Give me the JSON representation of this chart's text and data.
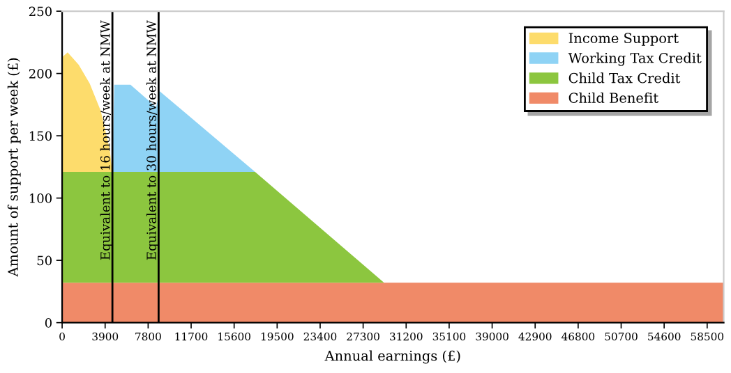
{
  "chart_data": {
    "type": "area",
    "stacked": true,
    "xlabel": "Annual earnings (£)",
    "ylabel": "Amount of support per week (£)",
    "x": [
      0,
      500,
      1500,
      2500,
      3500,
      4300,
      4550,
      4730,
      6200,
      8530,
      8820,
      17500,
      29200,
      60000
    ],
    "series": [
      {
        "name": "Child Benefit",
        "color": "#f08a68",
        "values": [
          32,
          32,
          32,
          32,
          32,
          32,
          32,
          32,
          32,
          32,
          32,
          32,
          32,
          32
        ]
      },
      {
        "name": "Child Tax Credit",
        "color": "#8cc63f",
        "values": [
          89,
          89,
          89,
          89,
          89,
          89,
          89,
          89,
          89,
          89,
          89,
          89,
          0,
          0
        ]
      },
      {
        "name": "Working Tax Credit",
        "color": "#8fd3f5",
        "values": [
          0,
          0,
          0,
          0,
          0,
          0,
          0,
          70,
          70,
          52,
          65,
          0,
          0,
          0
        ]
      },
      {
        "name": "Income Support",
        "color": "#fddc6c",
        "values": [
          92,
          96,
          86,
          71,
          49,
          19,
          0,
          0,
          0,
          0,
          0,
          0,
          0,
          0
        ]
      }
    ],
    "xlim": [
      0,
      60000
    ],
    "xticks": [
      0,
      3900,
      7800,
      11700,
      15600,
      19500,
      23400,
      27300,
      31200,
      35100,
      39000,
      42900,
      46800,
      50700,
      54600,
      58500
    ],
    "ylim": [
      0,
      250
    ],
    "yticks": [
      0,
      50,
      100,
      150,
      200,
      250
    ],
    "ref_lines": [
      {
        "axis": "x",
        "value": 4560,
        "label": "Equivalent to 16 hours/week at NMW",
        "color": "#000000"
      },
      {
        "axis": "x",
        "value": 8750,
        "label": "Equivalent to 30 hours/week at NMW",
        "color": "#000000"
      }
    ],
    "legend": "top right",
    "grid": false
  }
}
